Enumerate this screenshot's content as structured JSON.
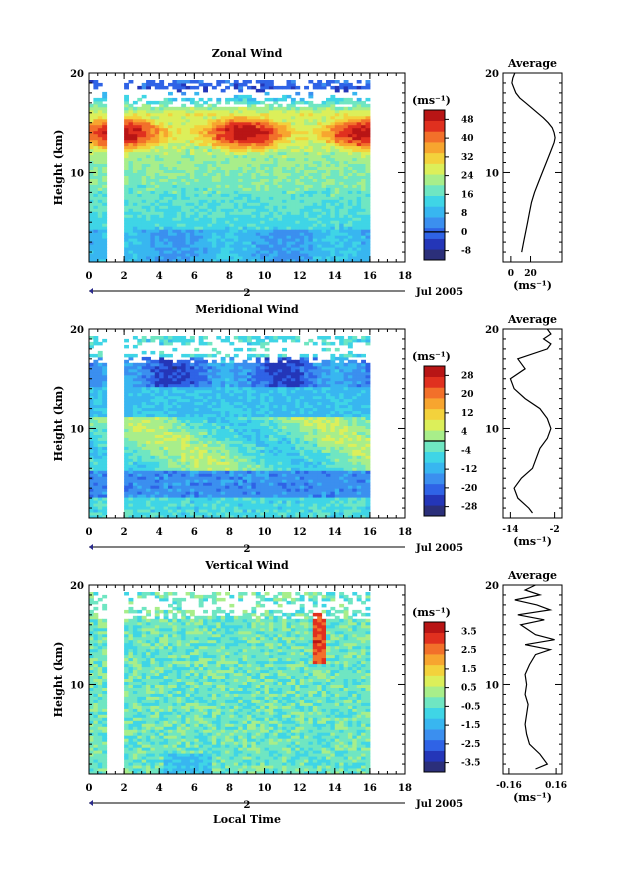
{
  "figure": {
    "xlabel": "Local Time",
    "day_marker": "2",
    "date_label": "Jul 2005",
    "unit_label": "(ms⁻¹)"
  },
  "chart_data": [
    {
      "type": "heatmap",
      "title": "Zonal Wind",
      "xlabel": "",
      "ylabel": "Height (km)",
      "xlim": [
        0,
        18
      ],
      "ylim": [
        1,
        20
      ],
      "x_ticks": [
        "0",
        "2",
        "4",
        "6",
        "8",
        "10",
        "12",
        "14",
        "16",
        "18"
      ],
      "y_ticks": [
        "10",
        "20"
      ],
      "data_x_range": [
        0,
        16
      ],
      "gap_x": [
        [
          0.9,
          1.8
        ]
      ],
      "colorbar": {
        "label": "(ms⁻¹)",
        "ticks": [
          "-8",
          "0",
          "8",
          "16",
          "24",
          "32",
          "40",
          "48"
        ],
        "range": [
          -12,
          52
        ],
        "zero_line": 0,
        "colors": [
          "#2b2f7a",
          "#2436b8",
          "#2f63e6",
          "#3b8fef",
          "#38b6f0",
          "#3fd5e6",
          "#6fe6c2",
          "#a8ee8a",
          "#dcef5a",
          "#f3d23c",
          "#f7a52f",
          "#f2702a",
          "#e0301f",
          "#b81515"
        ]
      },
      "profile": {
        "title": "Average",
        "xlim": [
          -8,
          52
        ],
        "x_ticks": [
          "0",
          "20"
        ],
        "xlabel": "(ms⁻¹)",
        "y_ticks": [
          "10",
          "20"
        ],
        "z": [
          2,
          3,
          4,
          5,
          6,
          7,
          8,
          9,
          10,
          11,
          12,
          13,
          13.5,
          14,
          14.5,
          15,
          15.5,
          16,
          16.5,
          17,
          17.5,
          18,
          18.5,
          19,
          19.5,
          20
        ],
        "values": [
          11,
          13,
          15,
          17,
          19,
          21,
          24,
          28,
          32,
          36,
          40,
          44,
          45,
          44,
          42,
          38,
          33,
          27,
          21,
          15,
          9,
          5,
          3,
          1,
          2,
          4
        ]
      }
    },
    {
      "type": "heatmap",
      "title": "Meridional Wind",
      "xlabel": "",
      "ylabel": "Height (km)",
      "xlim": [
        0,
        18
      ],
      "ylim": [
        1,
        20
      ],
      "x_ticks": [
        "0",
        "2",
        "4",
        "6",
        "8",
        "10",
        "12",
        "14",
        "16",
        "18"
      ],
      "y_ticks": [
        "10",
        "20"
      ],
      "data_x_range": [
        0,
        16
      ],
      "gap_x": [
        [
          0.9,
          1.8
        ]
      ],
      "colorbar": {
        "label": "(ms⁻¹)",
        "ticks": [
          "-28",
          "-20",
          "-12",
          "-4",
          "4",
          "12",
          "20",
          "28"
        ],
        "range": [
          -32,
          32
        ],
        "zero_line": 0,
        "colors": [
          "#2b2f7a",
          "#2436b8",
          "#2f63e6",
          "#3b8fef",
          "#38b6f0",
          "#3fd5e6",
          "#6fe6c2",
          "#a8ee8a",
          "#dcef5a",
          "#f3d23c",
          "#f7a52f",
          "#f2702a",
          "#e0301f",
          "#b81515"
        ]
      },
      "profile": {
        "title": "Average",
        "xlim": [
          -16,
          0
        ],
        "x_ticks": [
          "-14",
          "-2"
        ],
        "xlabel": "(ms⁻¹)",
        "y_ticks": [
          "10",
          "20"
        ],
        "z": [
          1.5,
          2,
          3,
          4,
          5,
          6,
          7,
          8,
          9,
          10,
          11,
          12,
          13,
          14,
          15,
          16,
          17,
          18,
          18.5,
          19,
          19.5,
          20
        ],
        "values": [
          -8,
          -9,
          -12,
          -13,
          -11,
          -8,
          -7,
          -6,
          -4,
          -3,
          -4,
          -6,
          -10,
          -13,
          -14,
          -10,
          -12,
          -4,
          -3,
          -5,
          -3,
          -4
        ]
      }
    },
    {
      "type": "heatmap",
      "title": "Vertical Wind",
      "xlabel": "Local Time",
      "ylabel": "Height (km)",
      "xlim": [
        0,
        18
      ],
      "ylim": [
        1,
        20
      ],
      "x_ticks": [
        "0",
        "2",
        "4",
        "6",
        "8",
        "10",
        "12",
        "14",
        "16",
        "18"
      ],
      "y_ticks": [
        "10",
        "20"
      ],
      "data_x_range": [
        0,
        16
      ],
      "gap_x": [
        [
          0.9,
          1.8
        ]
      ],
      "colorbar": {
        "label": "(ms⁻¹)",
        "ticks": [
          "-3.5",
          "-2.5",
          "-1.5",
          "-0.5",
          "0.5",
          "1.5",
          "2.5",
          "3.5"
        ],
        "range": [
          -4,
          4
        ],
        "zero_line": null,
        "colors": [
          "#2b2f7a",
          "#2436b8",
          "#2f63e6",
          "#3b8fef",
          "#38b6f0",
          "#3fd5e6",
          "#6fe6c2",
          "#a8ee8a",
          "#dcef5a",
          "#f3d23c",
          "#f7a52f",
          "#f2702a",
          "#e0301f",
          "#b81515"
        ]
      },
      "profile": {
        "title": "Average",
        "xlim": [
          -0.2,
          0.2
        ],
        "x_ticks": [
          "-0.16",
          "0.16"
        ],
        "xlabel": "(ms⁻¹)",
        "y_ticks": [
          "10",
          "20"
        ],
        "z": [
          1.5,
          2,
          3,
          4,
          5,
          6,
          7,
          8,
          9,
          10,
          11,
          12,
          13,
          13.5,
          14,
          14.5,
          15,
          16,
          16.5,
          17,
          17.5,
          18,
          18.5,
          19,
          19.5,
          20
        ],
        "values": [
          0.02,
          0.1,
          0.05,
          -0.02,
          -0.04,
          -0.05,
          -0.04,
          -0.03,
          -0.05,
          -0.04,
          -0.05,
          -0.02,
          0.02,
          0.12,
          -0.05,
          0.15,
          0.02,
          -0.08,
          0.08,
          -0.1,
          0.12,
          0.03,
          -0.12,
          0.05,
          -0.05,
          0.02
        ]
      }
    }
  ]
}
